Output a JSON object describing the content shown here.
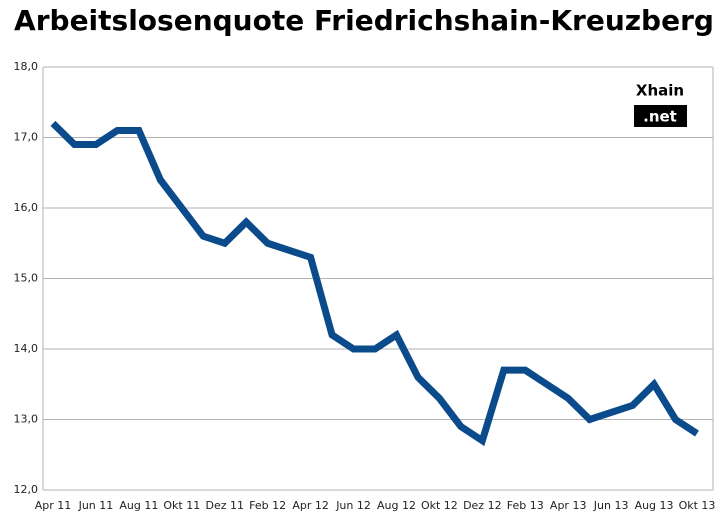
{
  "chart_data": {
    "type": "line",
    "title": "Arbeitslosenquote Friedrichshain-Kreuzberg",
    "logo": [
      "Xhain",
      ".net"
    ],
    "categories": [
      "Apr 11",
      null,
      "Jun 11",
      null,
      "Aug 11",
      null,
      "Okt 11",
      null,
      "Dez 11",
      null,
      "Feb 12",
      null,
      "Apr 12",
      null,
      "Jun 12",
      null,
      "Aug 12",
      null,
      "Okt 12",
      null,
      "Dez 12",
      null,
      "Feb 13",
      null,
      "Apr 13",
      null,
      "Jun 13",
      null,
      "Aug 13",
      null,
      "Okt 13"
    ],
    "values": [
      17.2,
      16.9,
      16.9,
      17.1,
      17.1,
      16.4,
      16.0,
      15.6,
      15.5,
      15.8,
      15.5,
      15.4,
      15.3,
      14.2,
      14.0,
      14.0,
      14.2,
      13.6,
      13.3,
      12.9,
      12.7,
      13.7,
      13.7,
      13.5,
      13.3,
      13.0,
      13.1,
      13.2,
      13.5,
      13.0,
      12.8
    ],
    "color": "#0b4a8b",
    "ylim": [
      12,
      18
    ],
    "yticks": [
      {
        "value": 12,
        "label": "12,0"
      },
      {
        "value": 13,
        "label": "13,0"
      },
      {
        "value": 14,
        "label": "14,0"
      },
      {
        "value": 15,
        "label": "15,0"
      },
      {
        "value": 16,
        "label": "16,0"
      },
      {
        "value": 17,
        "label": "17,0"
      },
      {
        "value": 18,
        "label": "18,0"
      }
    ],
    "grid": true
  }
}
